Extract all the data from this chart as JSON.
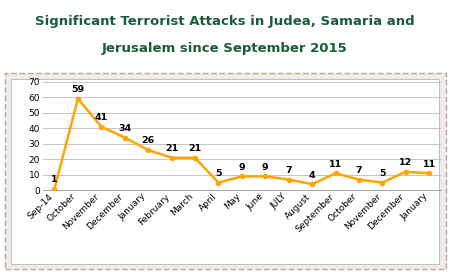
{
  "title_line1": "Significant Terrorist Attacks in Judea, Samaria and",
  "title_line2": "Jerusalem since September 2015",
  "title_color": "#1a5c38",
  "categories": [
    "Sep-14",
    "October",
    "November",
    "December",
    "January",
    "February",
    "March",
    "April",
    "May",
    "June",
    "JULY",
    "August",
    "September",
    "October",
    "November",
    "December",
    "January"
  ],
  "values": [
    1,
    59,
    41,
    34,
    26,
    21,
    21,
    5,
    9,
    9,
    7,
    4,
    11,
    7,
    5,
    12,
    11
  ],
  "line_color": "#FFA500",
  "line_width": 1.8,
  "marker_size": 3,
  "ylim": [
    0,
    70
  ],
  "yticks": [
    0,
    10,
    20,
    30,
    40,
    50,
    60,
    70
  ],
  "plot_bg": "#ffffff",
  "outer_bg": "#ececec",
  "border_color": "#c8a090",
  "inner_border_color": "#aaaaaa",
  "grid_color": "#bbbbbb",
  "label_fontsize": 6.5,
  "value_fontsize": 6.8,
  "title_fontsize": 9.5
}
